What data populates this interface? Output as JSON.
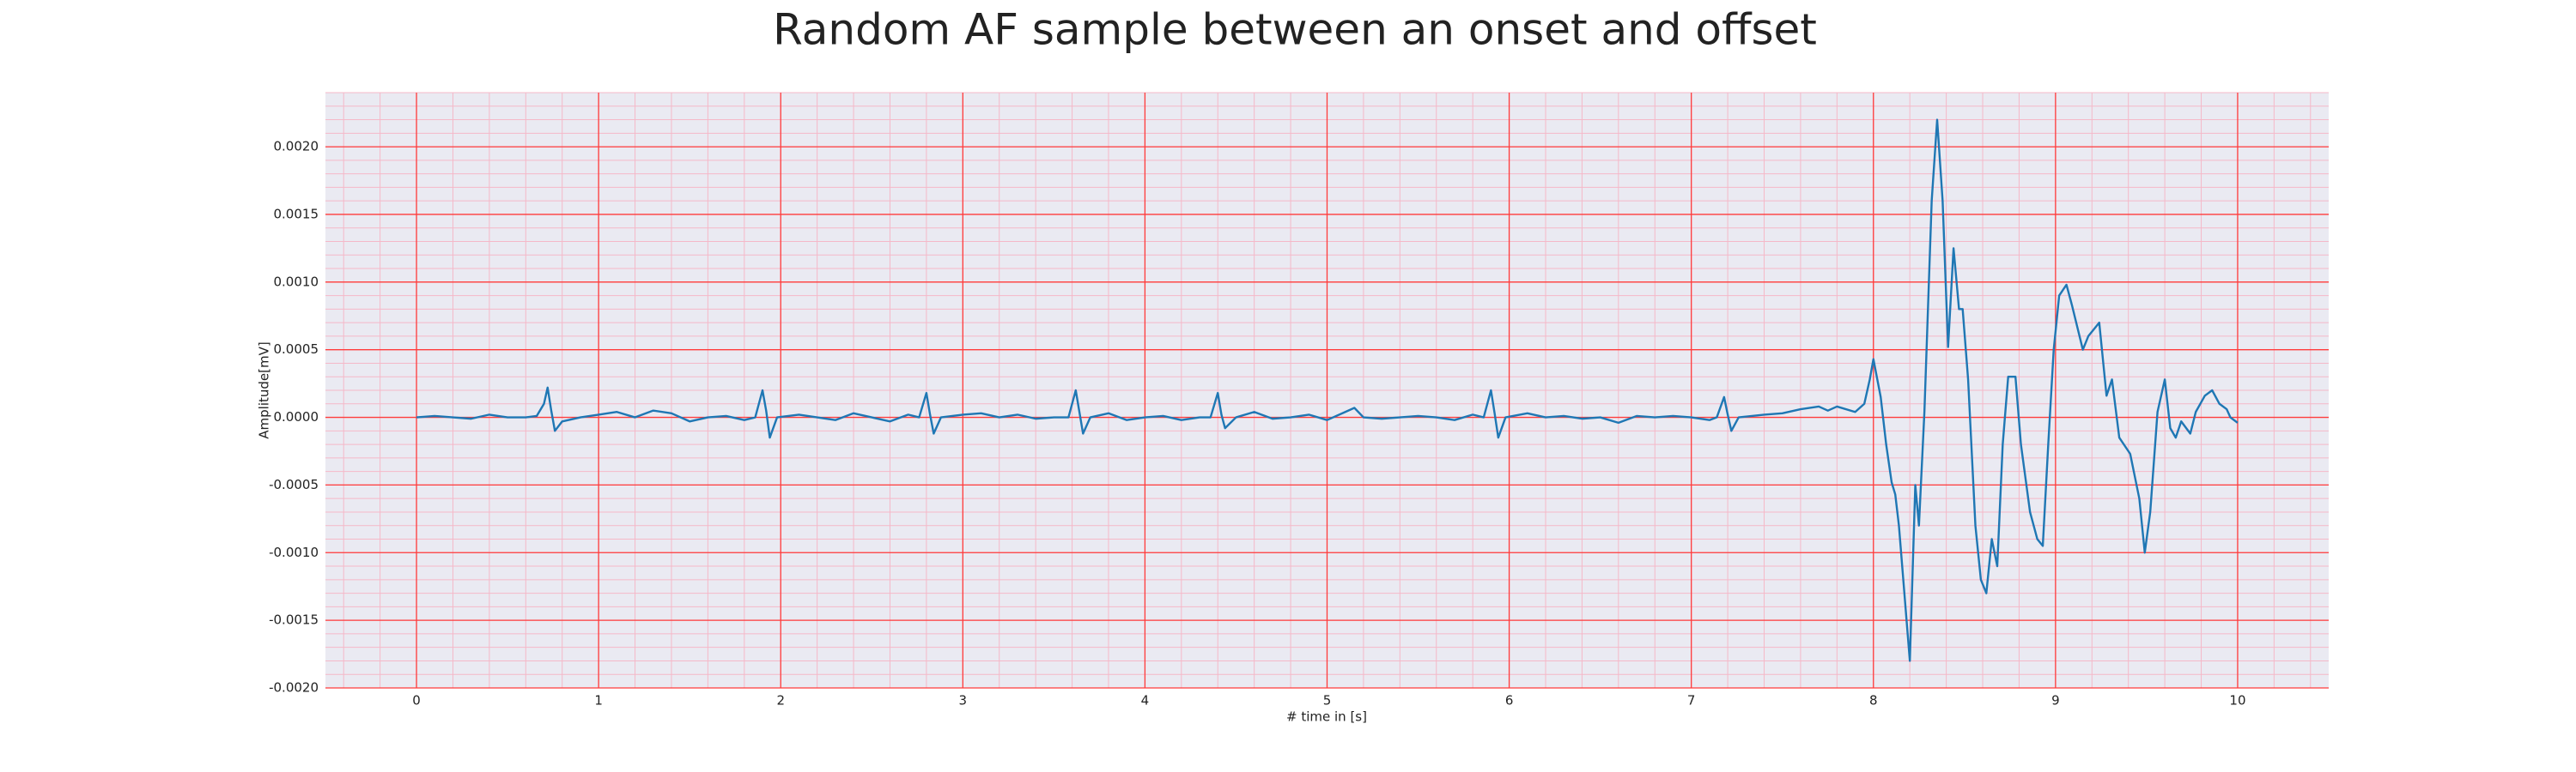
{
  "chart_data": {
    "type": "line",
    "title": "Random AF sample between an onset and offset",
    "xlabel": "# time in [s]",
    "ylabel": "Amplitude[mV]",
    "color": "#1f77b4",
    "grid": true,
    "minor_grid": true,
    "grid_color": "#ff3b3b",
    "minor_grid_color": "#f5b8c8",
    "background": "#eaeaf2",
    "xlim": [
      -0.5,
      10.5
    ],
    "xticks": [
      0,
      1,
      2,
      3,
      4,
      5,
      6,
      7,
      8,
      9,
      10
    ],
    "ylim": [
      -0.002,
      0.0024
    ],
    "yticks": [
      {
        "value": -0.002,
        "label": "-0.0020"
      },
      {
        "value": -0.0015,
        "label": "-0.0015"
      },
      {
        "value": -0.001,
        "label": "-0.0010"
      },
      {
        "value": -0.0005,
        "label": "-0.0005"
      },
      {
        "value": 0,
        "label": "0.0000"
      },
      {
        "value": 0.0005,
        "label": "0.0005"
      },
      {
        "value": 0.001,
        "label": "0.0010"
      },
      {
        "value": 0.0015,
        "label": "0.0015"
      },
      {
        "value": 0.002,
        "label": "0.0020"
      }
    ],
    "x": [
      0,
      0.1,
      0.2,
      0.3,
      0.4,
      0.5,
      0.6,
      0.66,
      0.7,
      0.72,
      0.74,
      0.76,
      0.8,
      0.9,
      1.0,
      1.1,
      1.2,
      1.3,
      1.4,
      1.5,
      1.6,
      1.7,
      1.8,
      1.86,
      1.9,
      1.92,
      1.94,
      1.98,
      2.1,
      2.2,
      2.3,
      2.4,
      2.5,
      2.6,
      2.7,
      2.76,
      2.8,
      2.82,
      2.84,
      2.88,
      3.0,
      3.1,
      3.2,
      3.3,
      3.4,
      3.5,
      3.58,
      3.62,
      3.64,
      3.66,
      3.7,
      3.8,
      3.9,
      4.0,
      4.1,
      4.2,
      4.3,
      4.36,
      4.4,
      4.42,
      4.44,
      4.5,
      4.6,
      4.7,
      4.8,
      4.9,
      5.0,
      5.1,
      5.15,
      5.2,
      5.3,
      5.4,
      5.5,
      5.6,
      5.7,
      5.8,
      5.86,
      5.9,
      5.92,
      5.94,
      5.98,
      6.1,
      6.2,
      6.3,
      6.4,
      6.5,
      6.6,
      6.7,
      6.8,
      6.9,
      7.0,
      7.1,
      7.14,
      7.18,
      7.2,
      7.22,
      7.26,
      7.4,
      7.5,
      7.6,
      7.7,
      7.75,
      7.8,
      7.9,
      7.95,
      7.98,
      8.0,
      8.04,
      8.07,
      8.1,
      8.12,
      8.14,
      8.2,
      8.23,
      8.25,
      8.28,
      8.32,
      8.35,
      8.38,
      8.41,
      8.44,
      8.47,
      8.49,
      8.52,
      8.56,
      8.59,
      8.62,
      8.65,
      8.68,
      8.71,
      8.74,
      8.78,
      8.81,
      8.86,
      8.9,
      8.93,
      8.96,
      8.99,
      9.02,
      9.06,
      9.09,
      9.15,
      9.18,
      9.24,
      9.28,
      9.31,
      9.35,
      9.41,
      9.46,
      9.49,
      9.52,
      9.56,
      9.6,
      9.63,
      9.66,
      9.69,
      9.74,
      9.77,
      9.82,
      9.86,
      9.9,
      9.94,
      9.96,
      10.0
    ],
    "values": [
      0,
      1e-05,
      0,
      -1e-05,
      2e-05,
      0,
      0,
      1e-05,
      0.0001,
      0.00022,
      5e-05,
      -0.0001,
      -3e-05,
      0,
      2e-05,
      4e-05,
      0,
      5e-05,
      3e-05,
      -3e-05,
      0,
      1e-05,
      -2e-05,
      0,
      0.0002,
      5e-05,
      -0.00015,
      0,
      2e-05,
      0,
      -2e-05,
      3e-05,
      0,
      -3e-05,
      2e-05,
      0,
      0.00018,
      2e-05,
      -0.00012,
      0,
      2e-05,
      3e-05,
      0,
      2e-05,
      -1e-05,
      0,
      0,
      0.0002,
      4e-05,
      -0.00012,
      0,
      3e-05,
      -2e-05,
      0,
      1e-05,
      -2e-05,
      0,
      0,
      0.00018,
      2e-05,
      -8e-05,
      0,
      4e-05,
      -1e-05,
      0,
      2e-05,
      -2e-05,
      4e-05,
      7e-05,
      0,
      -1e-05,
      0,
      1e-05,
      0,
      -2e-05,
      2e-05,
      0,
      0.0002,
      3e-05,
      -0.00015,
      0,
      3e-05,
      0,
      1e-05,
      -1e-05,
      0,
      -4e-05,
      1e-05,
      0,
      1e-05,
      0,
      -2e-05,
      0,
      0.00015,
      2e-05,
      -0.0001,
      0,
      2e-05,
      3e-05,
      6e-05,
      8e-05,
      5e-05,
      8e-05,
      4e-05,
      0.0001,
      0.00028,
      0.00043,
      0.00015,
      -0.0002,
      -0.00048,
      -0.00057,
      -0.0008,
      -0.0018,
      -0.0005,
      -0.0008,
      4e-05,
      0.0016,
      0.0022,
      0.0016,
      0.00052,
      0.00125,
      0.0008,
      0.0008,
      0.00028,
      -0.0008,
      -0.0012,
      -0.0013,
      -0.0009,
      -0.0011,
      -0.0002,
      0.0003,
      0.0003,
      -0.0002,
      -0.0007,
      -0.0009,
      -0.00095,
      -0.0002,
      0.0005,
      0.0009,
      0.00098,
      0.00083,
      0.0005,
      0.0006,
      0.0007,
      0.00016,
      0.00028,
      -0.00015,
      -0.00027,
      -0.0006,
      -0.001,
      -0.0007,
      4e-05,
      0.00028,
      -8e-05,
      -0.00015,
      -3e-05,
      -0.00012,
      4e-05,
      0.00016,
      0.0002,
      0.0001,
      6e-05,
      0,
      -4e-05
    ]
  }
}
